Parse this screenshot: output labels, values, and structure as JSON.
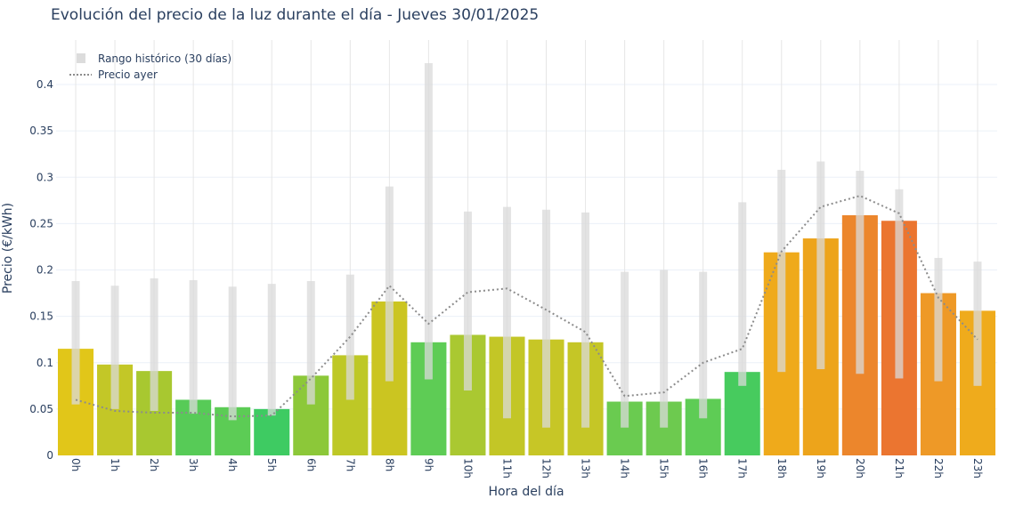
{
  "chart_data": {
    "type": "bar",
    "title": "Evolución del precio de la luz durante el día - Jueves 30/01/2025",
    "xlabel": "Hora del día",
    "ylabel": "Precio (€/kWh)",
    "ylim": [
      0,
      0.44
    ],
    "yticks": [
      0,
      0.05,
      0.1,
      0.15,
      0.2,
      0.25,
      0.3,
      0.35,
      0.4
    ],
    "ytick_labels": [
      "0",
      "0.05",
      "0.1",
      "0.15",
      "0.2",
      "0.25",
      "0.3",
      "0.35",
      "0.4"
    ],
    "grid": true,
    "legend_position": "top-left",
    "categories": [
      "0h",
      "1h",
      "2h",
      "3h",
      "4h",
      "5h",
      "6h",
      "7h",
      "8h",
      "9h",
      "10h",
      "11h",
      "12h",
      "13h",
      "14h",
      "15h",
      "16h",
      "17h",
      "18h",
      "19h",
      "20h",
      "21h",
      "22h",
      "23h"
    ],
    "series": [
      {
        "type": "bar",
        "values": [
          0.115,
          0.098,
          0.091,
          0.06,
          0.052,
          0.05,
          0.086,
          0.108,
          0.166,
          0.122,
          0.13,
          0.128,
          0.125,
          0.122,
          0.058,
          0.058,
          0.061,
          0.09,
          0.219,
          0.234,
          0.259,
          0.253,
          0.175,
          0.156
        ],
        "colors": [
          "#e1c619",
          "#c3c727",
          "#a8c830",
          "#57cb57",
          "#5ccc55",
          "#3ecb62",
          "#8cc839",
          "#bec826",
          "#cbc521",
          "#5ecc55",
          "#aac831",
          "#c3c626",
          "#c7c626",
          "#c5c626",
          "#6acb50",
          "#6dca4f",
          "#5ecc55",
          "#47cb5e",
          "#efaa1b",
          "#eda41b",
          "#ec862c",
          "#eb7530",
          "#ee9927",
          "#efab1c"
        ]
      },
      {
        "name": "Rango histórico (30 días)",
        "type": "range",
        "color": "#d9d9d9",
        "low": [
          0.055,
          0.05,
          0.048,
          0.045,
          0.038,
          0.043,
          0.055,
          0.06,
          0.08,
          0.082,
          0.07,
          0.04,
          0.03,
          0.03,
          0.03,
          0.03,
          0.04,
          0.075,
          0.09,
          0.093,
          0.088,
          0.083,
          0.08,
          0.075
        ],
        "high": [
          0.188,
          0.183,
          0.191,
          0.189,
          0.182,
          0.185,
          0.188,
          0.195,
          0.29,
          0.423,
          0.263,
          0.268,
          0.265,
          0.262,
          0.198,
          0.2,
          0.198,
          0.273,
          0.308,
          0.317,
          0.307,
          0.287,
          0.213,
          0.209
        ]
      },
      {
        "name": "Precio ayer",
        "type": "line",
        "style": "dotted",
        "color": "#8c8c8c",
        "values": [
          0.06,
          0.048,
          0.046,
          0.046,
          0.042,
          0.043,
          0.083,
          0.128,
          0.183,
          0.142,
          0.176,
          0.18,
          0.157,
          0.133,
          0.064,
          0.068,
          0.1,
          0.115,
          0.22,
          0.268,
          0.28,
          0.261,
          0.17,
          0.125
        ]
      }
    ]
  }
}
